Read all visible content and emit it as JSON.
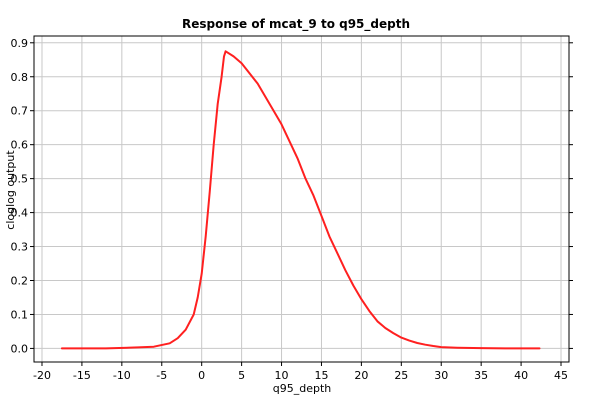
{
  "chart_data": {
    "type": "line",
    "title": "Response of mcat_9 to q95_depth",
    "xlabel": "q95_depth",
    "ylabel": "cloglog output",
    "xlim": [
      -21,
      46
    ],
    "ylim": [
      -0.04,
      0.92
    ],
    "x_ticks": [
      -20,
      -15,
      -10,
      -5,
      0,
      5,
      10,
      15,
      20,
      25,
      30,
      35,
      40,
      45
    ],
    "y_ticks": [
      0.0,
      0.1,
      0.2,
      0.3,
      0.4,
      0.5,
      0.6,
      0.7,
      0.8,
      0.9
    ],
    "x_tick_labels": [
      "-20",
      "-15",
      "-10",
      "-5",
      "0",
      "5",
      "10",
      "15",
      "20",
      "25",
      "30",
      "35",
      "40",
      "45"
    ],
    "y_tick_labels": [
      "0.0",
      "0.1",
      "0.2",
      "0.3",
      "0.4",
      "0.5",
      "0.6",
      "0.7",
      "0.8",
      "0.9"
    ],
    "grid": true,
    "series": [
      {
        "color": "#ff2020",
        "x": [
          -17.5,
          -12,
          -8,
          -6,
          -4,
          -3,
          -2,
          -1,
          -0.5,
          0,
          0.5,
          1,
          1.5,
          2,
          2.5,
          2.8,
          3,
          4,
          5,
          6,
          7,
          8,
          9,
          10,
          11,
          12,
          13,
          14,
          15,
          16,
          17,
          18,
          19,
          20,
          21,
          22,
          23,
          24,
          25,
          26,
          27,
          28,
          29,
          30,
          32,
          35,
          38,
          42.3
        ],
        "y": [
          0.0,
          0.0,
          0.003,
          0.005,
          0.015,
          0.03,
          0.055,
          0.1,
          0.15,
          0.22,
          0.33,
          0.46,
          0.6,
          0.72,
          0.8,
          0.86,
          0.875,
          0.86,
          0.84,
          0.81,
          0.78,
          0.74,
          0.7,
          0.66,
          0.61,
          0.56,
          0.5,
          0.45,
          0.39,
          0.33,
          0.28,
          0.23,
          0.185,
          0.145,
          0.11,
          0.08,
          0.06,
          0.045,
          0.032,
          0.023,
          0.016,
          0.011,
          0.007,
          0.004,
          0.002,
          0.001,
          0.0,
          0.0
        ]
      }
    ]
  }
}
